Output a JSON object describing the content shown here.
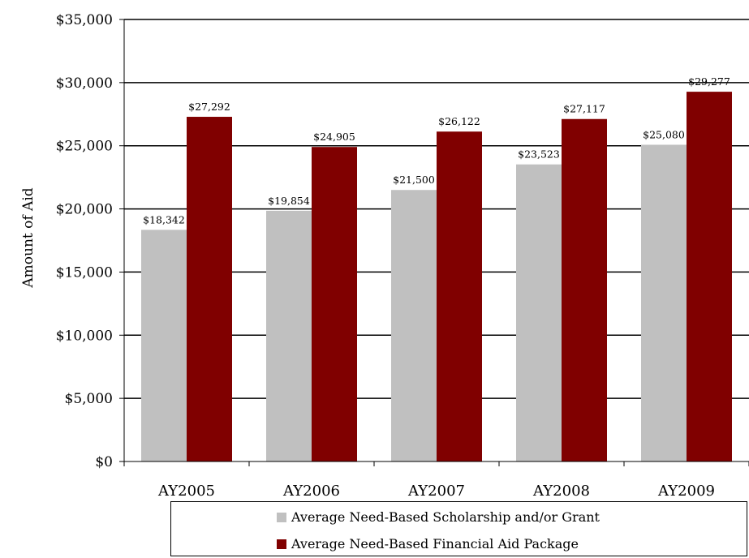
{
  "chart_data": {
    "type": "bar",
    "categories": [
      "AY2005",
      "AY2006",
      "AY2007",
      "AY2008",
      "AY2009"
    ],
    "series": [
      {
        "name": "Average Need-Based Scholarship and/or Grant",
        "color": "#c0c0c0",
        "values": [
          18342,
          19854,
          21500,
          23523,
          25080
        ],
        "labels": [
          "$18,342",
          "$19,854",
          "$21,500",
          "$23,523",
          "$25,080"
        ]
      },
      {
        "name": "Average Need-Based Financial Aid Package",
        "color": "#800000",
        "values": [
          27292,
          24905,
          26122,
          27117,
          29277
        ],
        "labels": [
          "$27,292",
          "$24,905",
          "$26,122",
          "$27,117",
          "$29,277"
        ]
      }
    ],
    "ylabel": "Amount of Aid",
    "xlabel": "",
    "ylim": [
      0,
      35000
    ],
    "yticks": [
      0,
      5000,
      10000,
      15000,
      20000,
      25000,
      30000,
      35000
    ],
    "ytick_labels": [
      "$0",
      "$5,000",
      "$10,000",
      "$15,000",
      "$20,000",
      "$25,000",
      "$30,000",
      "$35,000"
    ],
    "grid": true,
    "legend_position": "bottom"
  }
}
